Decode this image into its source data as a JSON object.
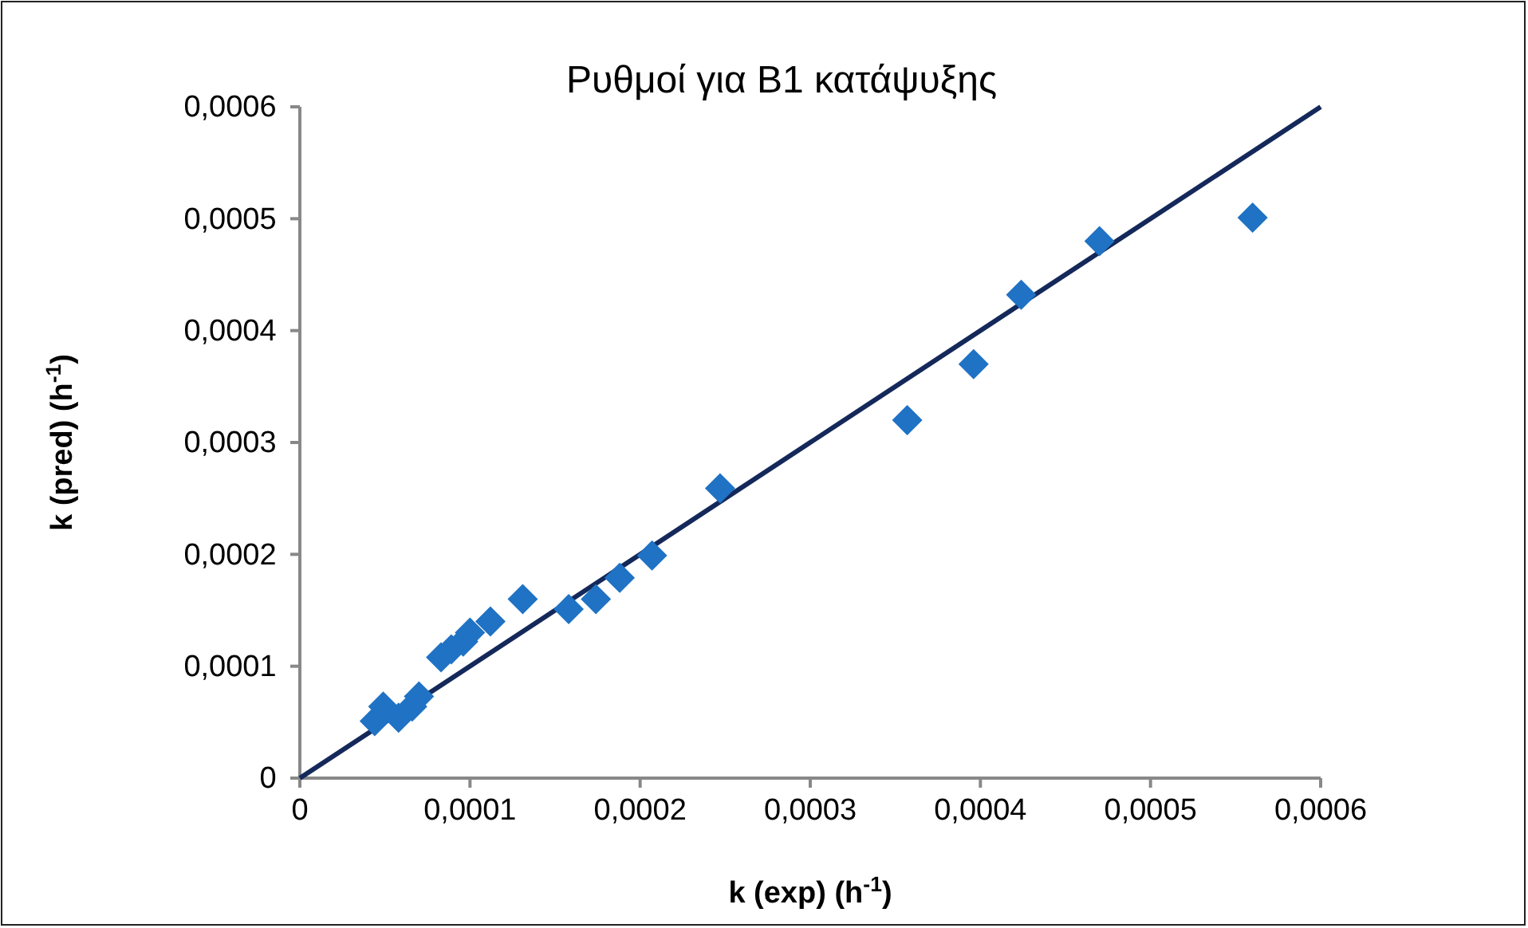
{
  "chart_data": {
    "type": "scatter",
    "title": "Ρυθμοί για B1 κατάψυξης",
    "xlabel": "k (exp) (h$^{-1}$)",
    "ylabel": "k (pred) (h$^{-1}$)",
    "xlim": [
      0,
      0.0006
    ],
    "ylim": [
      0,
      0.0006
    ],
    "xticks": [
      0,
      {
        "value": 0.0001,
        "label": "0,0001"
      },
      {
        "value": 0.0002,
        "label": "0,0002"
      },
      {
        "value": 0.0003,
        "label": "0,0003"
      },
      {
        "value": 0.0004,
        "label": "0,0004"
      },
      {
        "value": 0.0005,
        "label": "0,0005"
      },
      {
        "value": 0.0006,
        "label": "0,0006"
      }
    ],
    "yticks": [
      0,
      {
        "value": 0.0001,
        "label": "0,0001"
      },
      {
        "value": 0.0002,
        "label": "0,0002"
      },
      {
        "value": 0.0003,
        "label": "0,0003"
      },
      {
        "value": 0.0004,
        "label": "0,0004"
      },
      {
        "value": 0.0005,
        "label": "0,0005"
      },
      {
        "value": 0.0006,
        "label": "0,0006"
      }
    ],
    "grid": false,
    "series": [
      {
        "color": "#1f72c4",
        "marker": "diamond",
        "x": [
          4.4e-05,
          4.9e-05,
          5.8e-05,
          6.6e-05,
          7e-05,
          8.3e-05,
          8.9e-05,
          9.6e-05,
          0.0001,
          0.000112,
          0.000131,
          0.000158,
          0.000174,
          0.000188,
          0.000207,
          0.000247,
          0.000357,
          0.000396,
          0.000424,
          0.00047,
          0.00056
        ],
        "values": [
          5.1e-05,
          6.4e-05,
          5.4e-05,
          6.4e-05,
          7.3e-05,
          0.000108,
          0.000115,
          0.000122,
          0.00013,
          0.00014,
          0.00016,
          0.000151,
          0.00016,
          0.000179,
          0.000199,
          0.000259,
          0.00032,
          0.00037,
          0.000432,
          0.00048,
          0.000501
        ]
      },
      {
        "type": "line",
        "color": "#14285a",
        "marker": "none",
        "line_style": "solid",
        "x": [
          0,
          0.0006
        ],
        "values": [
          0,
          0.0006
        ]
      }
    ]
  }
}
